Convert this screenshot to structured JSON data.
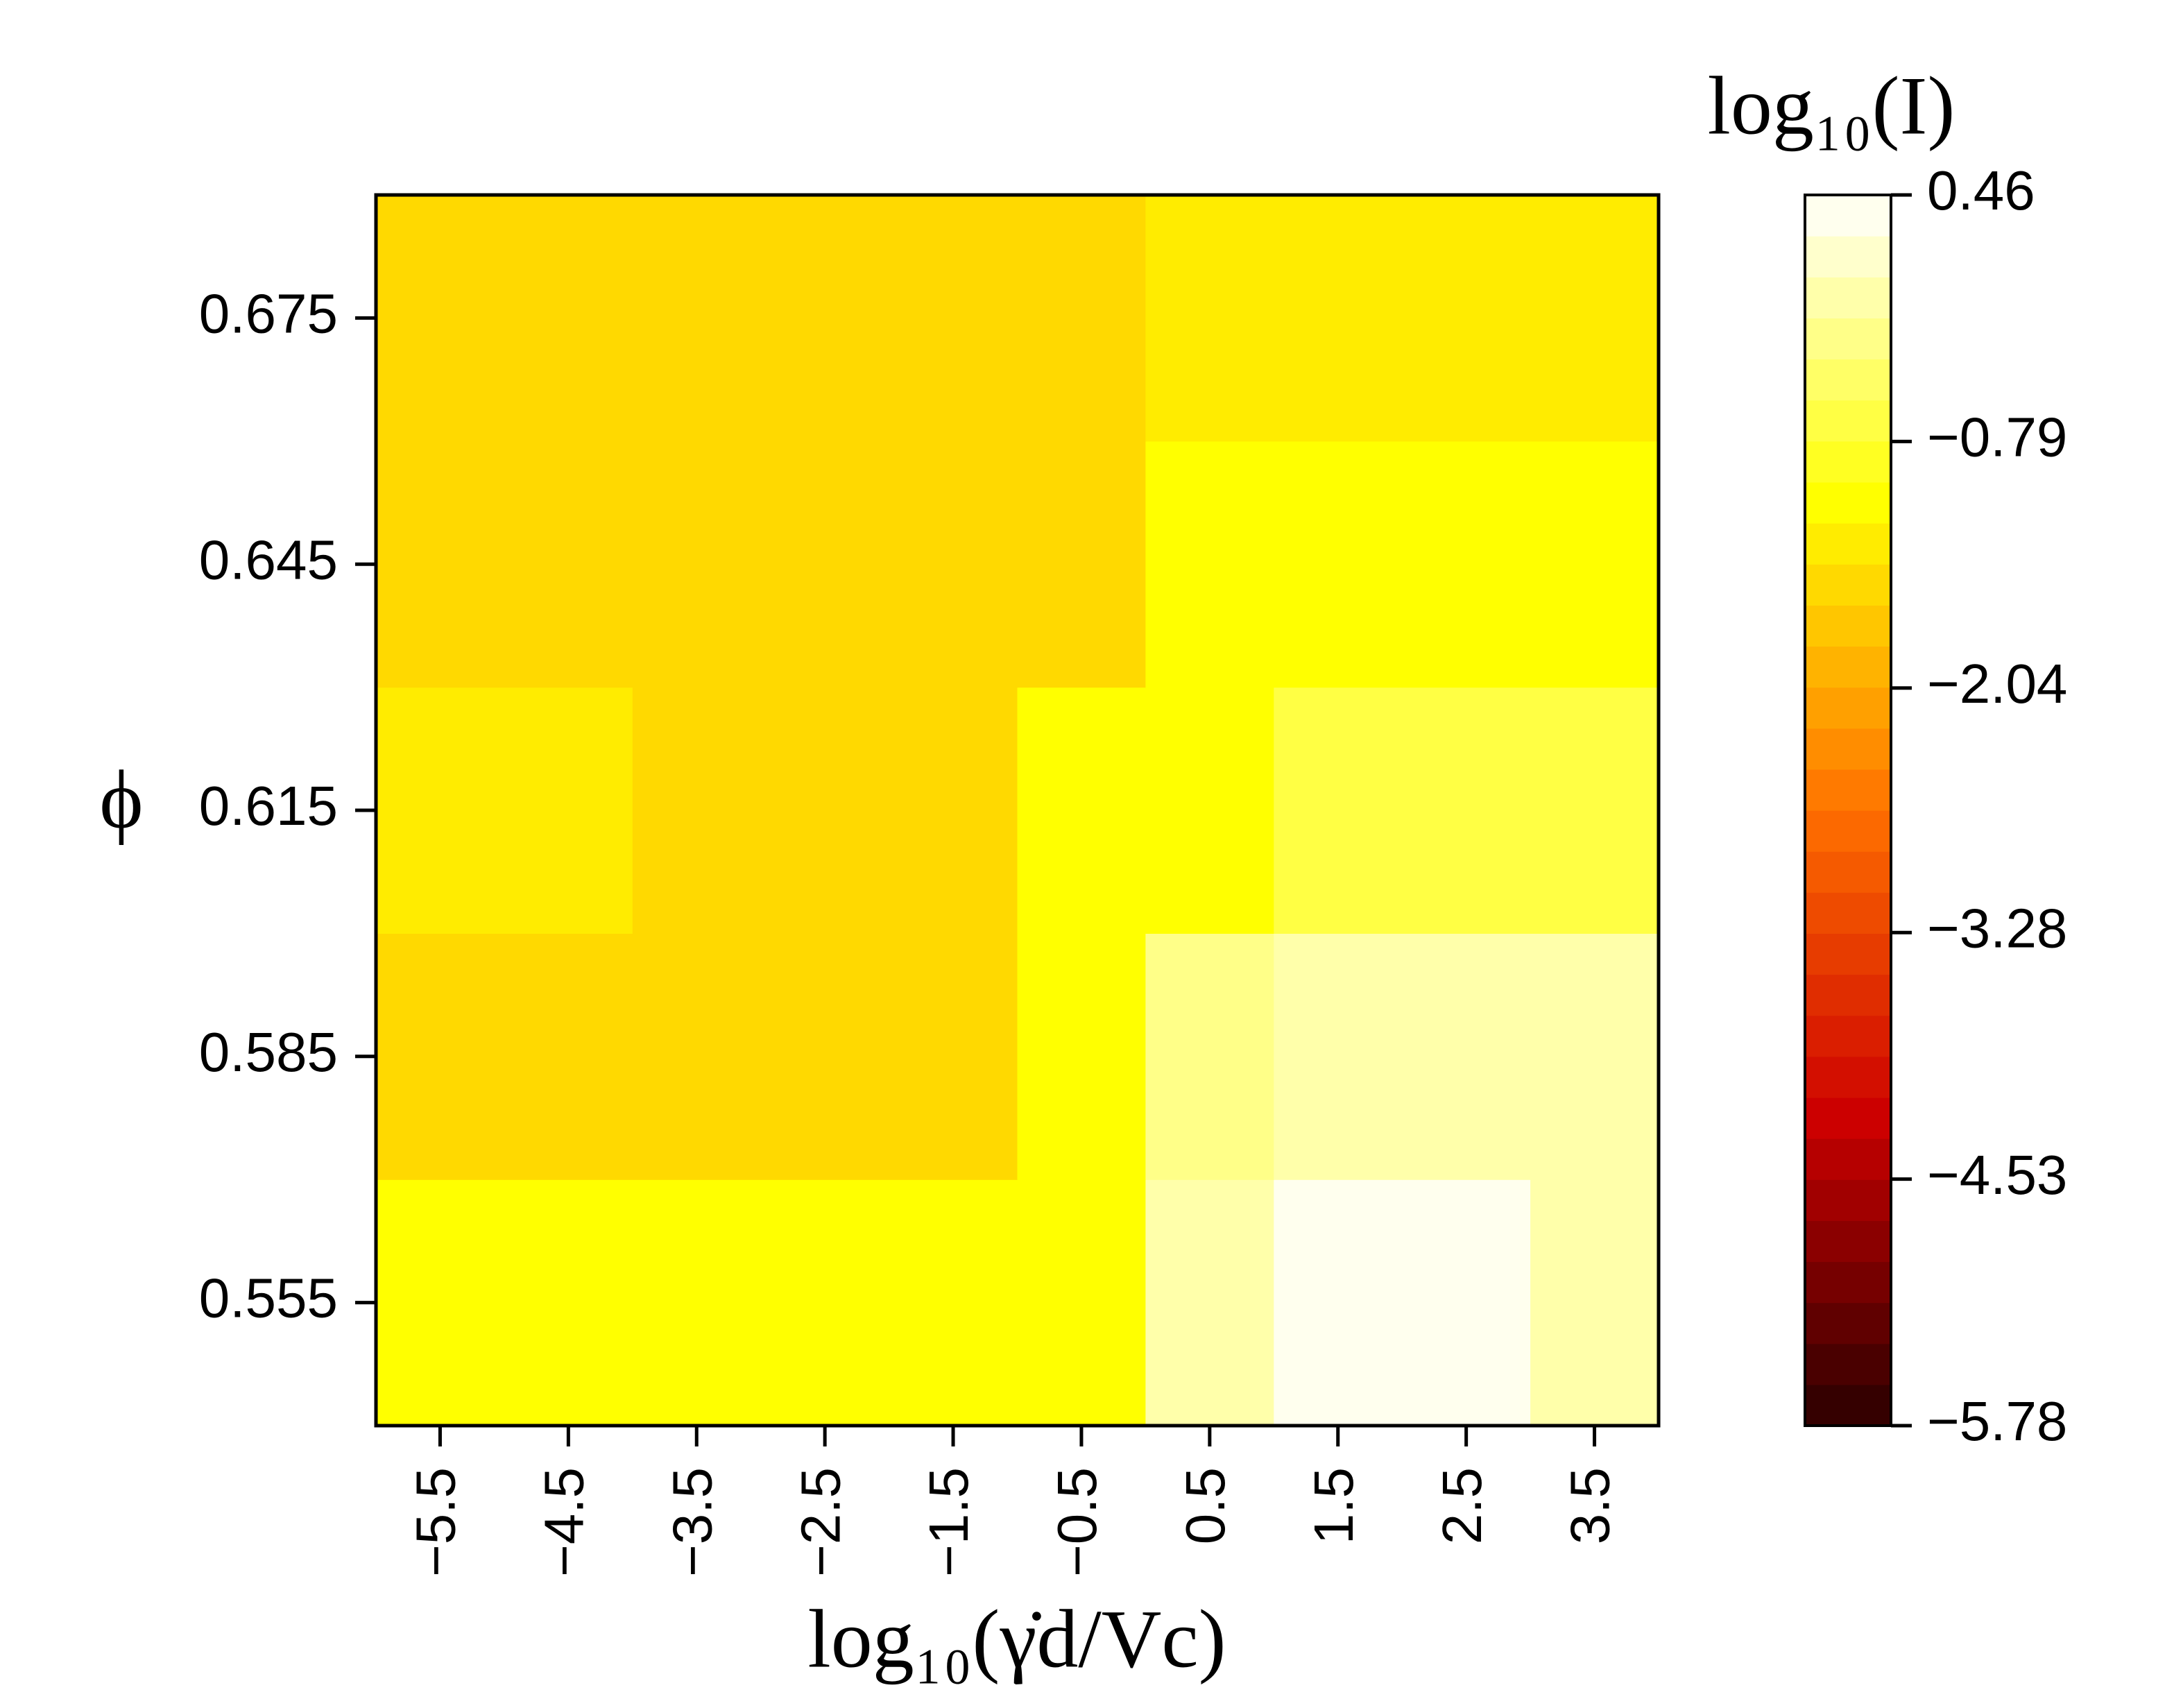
{
  "chart_data": {
    "type": "heatmap",
    "title": "log₁₀(I)",
    "xlabel": "log₁₀(γ̇d/Vc)",
    "ylabel": "ϕ",
    "x": [
      -5.5,
      -4.5,
      -3.5,
      -2.5,
      -1.5,
      -0.5,
      0.5,
      1.5,
      2.5,
      3.5
    ],
    "y": [
      0.555,
      0.585,
      0.615,
      0.645,
      0.675
    ],
    "z": [
      [
        -1.15,
        -1.15,
        -1.15,
        -1.15,
        -1.15,
        -1.1,
        -0.05,
        0.46,
        0.46,
        0.0
      ],
      [
        -1.45,
        -1.45,
        -1.45,
        -1.45,
        -1.45,
        -1.05,
        -0.35,
        -0.1,
        -0.1,
        -0.1
      ],
      [
        -1.35,
        -1.35,
        -1.55,
        -1.55,
        -1.55,
        -1.15,
        -1.0,
        -0.65,
        -0.65,
        -0.65
      ],
      [
        -1.55,
        -1.55,
        -1.55,
        -1.55,
        -1.55,
        -1.45,
        -1.1,
        -1.1,
        -1.1,
        -1.1
      ],
      [
        -1.55,
        -1.55,
        -1.55,
        -1.55,
        -1.55,
        -1.55,
        -1.35,
        -1.35,
        -1.35,
        -1.35
      ]
    ],
    "xlim": [
      -6,
      4
    ],
    "ylim": [
      0.54,
      0.69
    ],
    "xticks": [
      {
        "value": -5.5,
        "label": "−5.5"
      },
      {
        "value": -4.5,
        "label": "−4.5"
      },
      {
        "value": -3.5,
        "label": "−3.5"
      },
      {
        "value": -2.5,
        "label": "−2.5"
      },
      {
        "value": -1.5,
        "label": "−1.5"
      },
      {
        "value": -0.5,
        "label": "−0.5"
      },
      0.5,
      1.5,
      2.5,
      3.5
    ],
    "yticks": [
      0.555,
      0.585,
      0.615,
      0.645,
      0.675
    ],
    "zlim": [
      -5.78,
      0.46
    ],
    "zticks": [
      {
        "value": -5.78,
        "label": "−5.78"
      },
      {
        "value": -4.53,
        "label": "−4.53"
      },
      {
        "value": -3.28,
        "label": "−3.28"
      },
      {
        "value": -2.04,
        "label": "−2.04"
      },
      {
        "value": -0.79,
        "label": "−0.79"
      },
      0.46
    ],
    "colormap": [
      "#2a0000",
      "#cc0000",
      "#ff7000",
      "#ffff00",
      "#ffffff"
    ],
    "colorbar_levels": 30
  }
}
